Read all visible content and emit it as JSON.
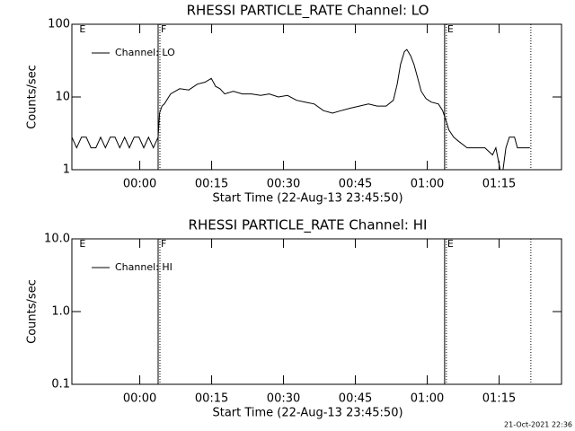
{
  "chart_data": [
    {
      "type": "line",
      "title": "RHESSI PARTICLE_RATE Channel: LO",
      "ylabel": "Counts/sec",
      "xlabel": "Start Time (22-Aug-13 23:45:50)",
      "log_y": true,
      "ylim": [
        1,
        100
      ],
      "yticks": [
        1,
        10,
        100
      ],
      "xlim": [
        0,
        102.2
      ],
      "xticks": [
        {
          "value": 14.17,
          "label": "00:00"
        },
        {
          "value": 29.17,
          "label": "00:15"
        },
        {
          "value": 44.17,
          "label": "00:30"
        },
        {
          "value": 59.17,
          "label": "00:45"
        },
        {
          "value": 74.17,
          "label": "01:00"
        },
        {
          "value": 89.17,
          "label": "01:15"
        }
      ],
      "markers": [
        {
          "x": 1.0,
          "label": "E",
          "style": "none"
        },
        {
          "x": 18.0,
          "label": "F",
          "style": "solid"
        },
        {
          "x": 77.8,
          "label": "E",
          "style": "solid"
        },
        {
          "x": 95.8,
          "style": "dotted"
        }
      ],
      "series": [
        {
          "name": "Channel: LO",
          "color": "#000000",
          "x": [
            0,
            1,
            2,
            3,
            4,
            5,
            6,
            7,
            8,
            9,
            10,
            11,
            12,
            13,
            14,
            15,
            16,
            17,
            18.0,
            18.3,
            18.8,
            19.3,
            20.6,
            22.5,
            24.4,
            26.2,
            27.8,
            29.1,
            30,
            30.9,
            31.9,
            33.7,
            35.6,
            37.5,
            39.4,
            41.2,
            43.1,
            45,
            46.9,
            48.7,
            50.6,
            52.5,
            54.4,
            56.2,
            58.1,
            60,
            61.9,
            63.7,
            65.6,
            67.1,
            67.9,
            68.6,
            69.4,
            69.9,
            70.7,
            71.4,
            72.2,
            72.9,
            73.9,
            75,
            76.5,
            77.4,
            78.2,
            78.7,
            79.7,
            80.6,
            82.5,
            84.4,
            86.2,
            87.8,
            88.5,
            89.4,
            90,
            90.6,
            91.3,
            92.4,
            93,
            95.6
          ],
          "values": [
            2.8,
            2,
            2.8,
            2.8,
            2,
            2,
            2.8,
            2,
            2.8,
            2.8,
            2,
            2.8,
            2,
            2.8,
            2.8,
            2,
            2.8,
            2,
            2.8,
            6,
            7.5,
            8,
            11,
            13,
            12.5,
            15,
            16,
            18,
            14,
            13,
            11,
            12,
            11,
            11,
            10.5,
            11,
            10,
            10.5,
            9,
            8.5,
            8,
            6.5,
            6,
            6.5,
            7,
            7.5,
            8,
            7.5,
            7.5,
            9,
            15,
            28,
            42,
            45,
            37,
            28,
            18,
            12,
            9.5,
            8.5,
            8,
            6.5,
            4.5,
            3.5,
            2.8,
            2.5,
            2,
            2,
            2,
            1.6,
            2,
            1,
            1,
            2,
            2.8,
            2.8,
            2,
            2
          ]
        }
      ],
      "legend": "upper left"
    },
    {
      "type": "line",
      "title": "RHESSI PARTICLE_RATE Channel: HI",
      "ylabel": "Counts/sec",
      "xlabel": "Start Time (22-Aug-13 23:45:50)",
      "log_y": true,
      "ylim": [
        0.1,
        10
      ],
      "yticks": [
        0.1,
        {
          "value": 1,
          "label": "1.0"
        },
        {
          "value": 10,
          "label": "10.0"
        }
      ],
      "xlim": [
        0,
        102.2
      ],
      "xticks": [
        {
          "value": 14.17,
          "label": "00:00"
        },
        {
          "value": 29.17,
          "label": "00:15"
        },
        {
          "value": 44.17,
          "label": "00:30"
        },
        {
          "value": 59.17,
          "label": "00:45"
        },
        {
          "value": 74.17,
          "label": "01:00"
        },
        {
          "value": 89.17,
          "label": "01:15"
        }
      ],
      "markers": [
        {
          "x": 1.0,
          "label": "E",
          "style": "none"
        },
        {
          "x": 18.0,
          "label": "F",
          "style": "solid"
        },
        {
          "x": 77.8,
          "label": "E",
          "style": "solid"
        },
        {
          "x": 95.8,
          "style": "dotted"
        }
      ],
      "series": [
        {
          "name": "Channel: HI",
          "color": "#000000",
          "x": [],
          "values": []
        }
      ],
      "legend": "upper left"
    }
  ],
  "footer": "21-Oct-2021 22:36"
}
